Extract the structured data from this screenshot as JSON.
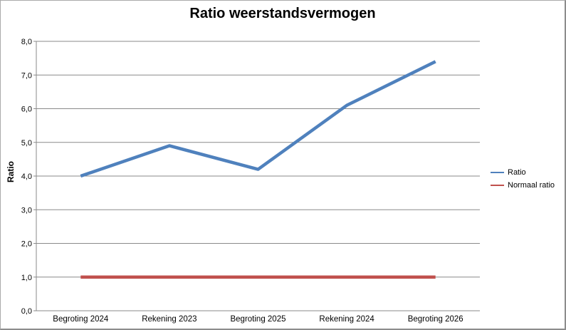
{
  "window": {
    "background": "#FFFFFF",
    "border_color": "#8C8C8C"
  },
  "chart_data": {
    "type": "line",
    "title": "Ratio weerstandsvermogen",
    "xlabel": "",
    "ylabel": "Ratio",
    "categories": [
      "Begroting 2024",
      "Rekening 2023",
      "Begroting 2025",
      "Rekening 2024",
      "Begroting 2026"
    ],
    "series": [
      {
        "name": "Ratio",
        "color": "#4F81BD",
        "stroke_width": 4.5,
        "values": [
          4.0,
          4.9,
          4.2,
          6.1,
          7.4
        ]
      },
      {
        "name": "Normaal ratio",
        "color": "#C0504D",
        "stroke_width": 4.5,
        "values": [
          1.0,
          1.0,
          1.0,
          1.0,
          1.0
        ]
      }
    ],
    "ylim": [
      0,
      8
    ],
    "ytick_step": 1.0,
    "ytick_labels": [
      "0,0",
      "1,0",
      "2,0",
      "3,0",
      "4,0",
      "5,0",
      "6,0",
      "7,0",
      "8,0"
    ],
    "grid": true,
    "legend_position": "right",
    "legend_entries": [
      "Ratio",
      "Normaal ratio"
    ],
    "gridline_color": "#8A8A8A",
    "axis_color": "#8A8A8A",
    "text_color": "#000000"
  }
}
